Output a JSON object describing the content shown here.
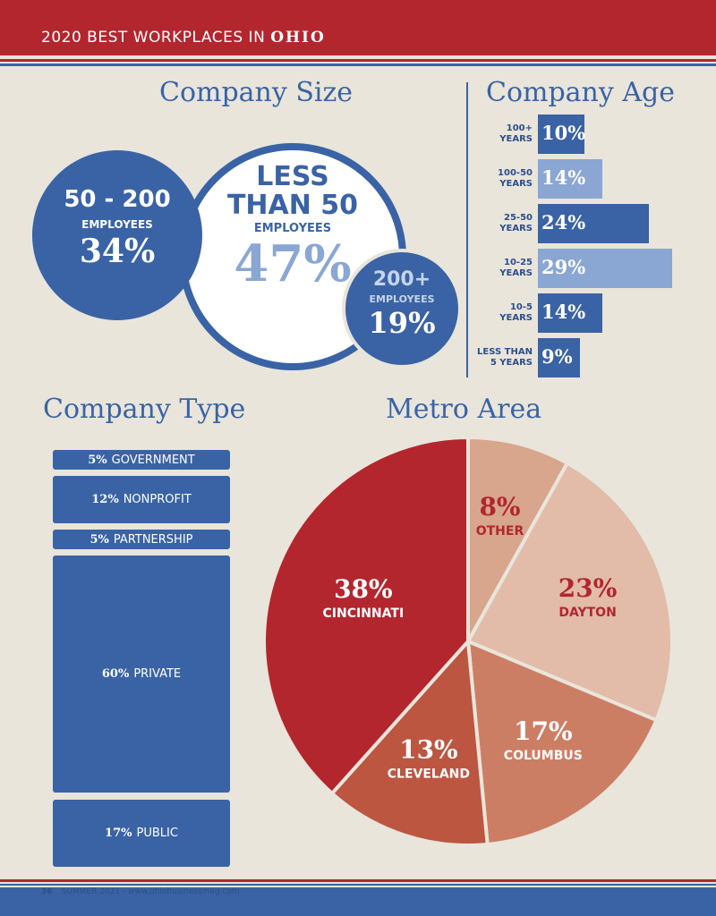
{
  "header": {
    "title_prefix": "2020 BEST WORKPLACES IN ",
    "title_state": "OHIO"
  },
  "colors": {
    "red": "#b3262e",
    "blue": "#3a63a5",
    "light_blue": "#8aa6d3",
    "background": "#e9e5db"
  },
  "company_size": {
    "title": "Company Size",
    "groups": [
      {
        "range": "50 - 200",
        "unit": "EMPLOYEES",
        "value": "34%"
      },
      {
        "range_line1": "LESS",
        "range_line2": "THAN 50",
        "unit": "EMPLOYEES",
        "value": "47%"
      },
      {
        "range": "200+",
        "unit": "EMPLOYEES",
        "value": "19%"
      }
    ]
  },
  "chart_data": [
    {
      "type": "bar",
      "title": "Company Age",
      "categories": [
        "100+ YEARS",
        "100-50 YEARS",
        "25-50 YEARS",
        "10-25 YEARS",
        "10-5 YEARS",
        "LESS THAN 5 YEARS"
      ],
      "category_lines": [
        [
          "100+",
          "YEARS"
        ],
        [
          "100-50",
          "YEARS"
        ],
        [
          "25-50",
          "YEARS"
        ],
        [
          "10-25",
          "YEARS"
        ],
        [
          "10-5",
          "YEARS"
        ],
        [
          "LESS THAN",
          "5 YEARS"
        ]
      ],
      "values": [
        10,
        14,
        24,
        29,
        14,
        9
      ],
      "value_labels": [
        "10%",
        "14%",
        "24%",
        "29%",
        "14%",
        "9%"
      ],
      "bar_colors": [
        "#3a63a5",
        "#8aa6d3",
        "#3a63a5",
        "#8aa6d3",
        "#3a63a5",
        "#3a63a5"
      ],
      "orientation": "horizontal",
      "xlim": [
        0,
        29
      ]
    },
    {
      "type": "bar",
      "title": "Company Type",
      "categories": [
        "GOVERNMENT",
        "NONPROFIT",
        "PARTNERSHIP",
        "PRIVATE",
        "PUBLIC"
      ],
      "values": [
        5,
        12,
        5,
        60,
        17
      ],
      "value_labels": [
        "5%",
        "12%",
        "5%",
        "60%",
        "17%"
      ],
      "stacked": true
    },
    {
      "type": "pie",
      "title": "Metro Area",
      "categories": [
        "OTHER",
        "DAYTON",
        "COLUMBUS",
        "CLEVELAND",
        "CINCINNATI"
      ],
      "values": [
        8,
        23,
        17,
        13,
        38
      ],
      "value_labels": [
        "8%",
        "23%",
        "17%",
        "13%",
        "38%"
      ],
      "slice_colors": [
        "#d8a58d",
        "#e2bca8",
        "#cc7e65",
        "#bc5641",
        "#b3262e"
      ],
      "label_colors": [
        "#b3262e",
        "#b3262e",
        "#ffffff",
        "#ffffff",
        "#ffffff"
      ]
    }
  ],
  "footer": {
    "page": "36",
    "text": "SUMMER 2021 - www.ohiobusinessmag.com"
  }
}
